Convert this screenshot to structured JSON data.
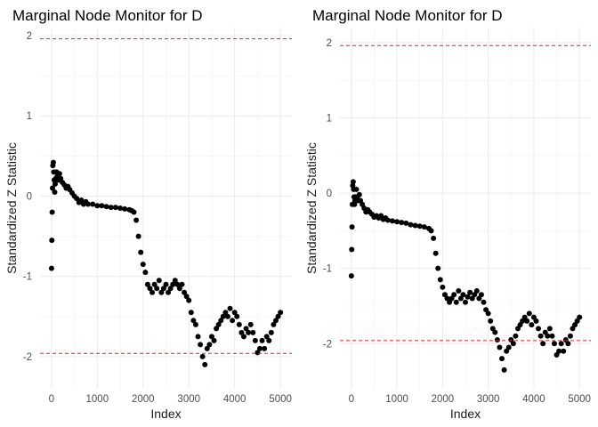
{
  "chart_data": [
    {
      "type": "scatter",
      "title": "Marginal Node Monitor for D",
      "xlabel": "Index",
      "ylabel": "Standardized Z Statistic",
      "xlim": [
        -250,
        5250
      ],
      "ylim": [
        -2.4,
        2.1
      ],
      "x_ticks": [
        0,
        1000,
        2000,
        3000,
        4000,
        5000
      ],
      "x_tick_labels": [
        "0",
        "1000",
        "2000",
        "3000",
        "4000",
        "5000"
      ],
      "y_ticks": [
        -2,
        -1,
        0,
        1,
        2
      ],
      "y_tick_labels": [
        "-2",
        "-1",
        "0",
        "1",
        "2"
      ],
      "grid": true,
      "reference_lines": [
        1.96,
        -1.96
      ],
      "reference_line_color": "#d62728",
      "point_color": "#000000",
      "series": [
        {
          "x": [
            1,
            8,
            15,
            22,
            30,
            40,
            50,
            60,
            70,
            80,
            95,
            110,
            130,
            150,
            175,
            200,
            240,
            280,
            320,
            360,
            400,
            450,
            500,
            550,
            600,
            650,
            700,
            750,
            800,
            900,
            1000,
            1100,
            1200,
            1300,
            1400,
            1500,
            1600,
            1700,
            1750,
            1800,
            1850,
            1900,
            1950,
            2000,
            2050,
            2100,
            2150,
            2200,
            2250,
            2300,
            2350,
            2400,
            2450,
            2500,
            2550,
            2600,
            2650,
            2700,
            2750,
            2800,
            2850,
            2900,
            2950,
            3000,
            3050,
            3100,
            3150,
            3200,
            3250,
            3300,
            3350,
            3400,
            3450,
            3500,
            3550,
            3600,
            3650,
            3700,
            3750,
            3800,
            3850,
            3900,
            3950,
            4000,
            4050,
            4100,
            4150,
            4200,
            4250,
            4300,
            4350,
            4400,
            4450,
            4500,
            4550,
            4600,
            4650,
            4700,
            4750,
            4800,
            4850,
            4900,
            4950,
            5000
          ],
          "y": [
            -0.9,
            -0.55,
            -0.2,
            0.1,
            0.38,
            0.42,
            0.3,
            0.2,
            0.05,
            0.15,
            0.22,
            0.3,
            0.25,
            0.2,
            0.28,
            0.22,
            0.17,
            0.14,
            0.1,
            0.12,
            0.08,
            0.04,
            0.0,
            -0.03,
            -0.08,
            -0.05,
            -0.1,
            -0.07,
            -0.1,
            -0.1,
            -0.12,
            -0.12,
            -0.13,
            -0.14,
            -0.14,
            -0.15,
            -0.16,
            -0.17,
            -0.18,
            -0.2,
            -0.3,
            -0.5,
            -0.7,
            -0.85,
            -0.95,
            -1.1,
            -1.15,
            -1.2,
            -1.1,
            -1.15,
            -1.05,
            -1.2,
            -1.15,
            -1.1,
            -1.2,
            -1.15,
            -1.1,
            -1.05,
            -1.1,
            -1.15,
            -1.1,
            -1.2,
            -1.25,
            -1.3,
            -1.45,
            -1.55,
            -1.6,
            -1.75,
            -1.85,
            -2.0,
            -2.1,
            -1.9,
            -1.85,
            -1.75,
            -1.8,
            -1.65,
            -1.6,
            -1.55,
            -1.5,
            -1.45,
            -1.5,
            -1.4,
            -1.55,
            -1.45,
            -1.5,
            -1.6,
            -1.7,
            -1.75,
            -1.65,
            -1.7,
            -1.6,
            -1.7,
            -1.8,
            -1.95,
            -1.9,
            -1.8,
            -1.9,
            -1.75,
            -1.8,
            -1.7,
            -1.6,
            -1.55,
            -1.5,
            -1.45
          ]
        }
      ]
    },
    {
      "type": "scatter",
      "title": "Marginal Node Monitor for D",
      "xlabel": "Index",
      "ylabel": "Standardized Z Statistic",
      "xlim": [
        -250,
        5250
      ],
      "ylim": [
        -2.6,
        2.2
      ],
      "x_ticks": [
        0,
        1000,
        2000,
        3000,
        4000,
        5000
      ],
      "x_tick_labels": [
        "0",
        "1000",
        "2000",
        "3000",
        "4000",
        "5000"
      ],
      "y_ticks": [
        -2,
        -1,
        0,
        1,
        2
      ],
      "y_tick_labels": [
        "-2",
        "-1",
        "0",
        "1",
        "2"
      ],
      "grid": true,
      "reference_lines": [
        1.96,
        -1.96
      ],
      "reference_line_color": "#d62728",
      "point_color": "#000000",
      "series": [
        {
          "x": [
            1,
            8,
            15,
            22,
            30,
            40,
            50,
            60,
            70,
            80,
            95,
            110,
            130,
            150,
            175,
            200,
            240,
            280,
            320,
            360,
            400,
            450,
            500,
            550,
            600,
            650,
            700,
            750,
            800,
            900,
            1000,
            1100,
            1200,
            1300,
            1400,
            1500,
            1600,
            1700,
            1750,
            1800,
            1850,
            1900,
            1950,
            2000,
            2050,
            2100,
            2150,
            2200,
            2250,
            2300,
            2350,
            2400,
            2450,
            2500,
            2550,
            2600,
            2650,
            2700,
            2750,
            2800,
            2850,
            2900,
            2950,
            3000,
            3050,
            3100,
            3150,
            3200,
            3250,
            3300,
            3350,
            3400,
            3450,
            3500,
            3550,
            3600,
            3650,
            3700,
            3750,
            3800,
            3850,
            3900,
            3950,
            4000,
            4050,
            4100,
            4150,
            4200,
            4250,
            4300,
            4350,
            4400,
            4450,
            4500,
            4550,
            4600,
            4650,
            4700,
            4750,
            4800,
            4850,
            4900,
            4950,
            5000
          ],
          "y": [
            -1.1,
            -0.75,
            -0.45,
            -0.15,
            0.1,
            0.15,
            0.05,
            -0.05,
            -0.15,
            -0.1,
            -0.05,
            0.05,
            -0.05,
            -0.1,
            -0.02,
            -0.1,
            -0.15,
            -0.2,
            -0.25,
            -0.22,
            -0.25,
            -0.28,
            -0.32,
            -0.3,
            -0.33,
            -0.3,
            -0.35,
            -0.33,
            -0.36,
            -0.37,
            -0.38,
            -0.39,
            -0.4,
            -0.42,
            -0.43,
            -0.44,
            -0.45,
            -0.47,
            -0.5,
            -0.6,
            -0.8,
            -1.0,
            -1.15,
            -1.25,
            -1.35,
            -1.4,
            -1.45,
            -1.4,
            -1.35,
            -1.45,
            -1.3,
            -1.4,
            -1.35,
            -1.45,
            -1.38,
            -1.32,
            -1.4,
            -1.35,
            -1.3,
            -1.4,
            -1.35,
            -1.45,
            -1.55,
            -1.6,
            -1.7,
            -1.8,
            -1.85,
            -1.95,
            -2.05,
            -2.2,
            -2.35,
            -2.1,
            -2.05,
            -1.95,
            -2.0,
            -1.9,
            -1.8,
            -1.75,
            -1.7,
            -1.65,
            -1.7,
            -1.6,
            -1.75,
            -1.65,
            -1.7,
            -1.8,
            -1.9,
            -2.0,
            -1.85,
            -1.9,
            -1.8,
            -1.9,
            -2.0,
            -2.15,
            -2.1,
            -2.0,
            -2.1,
            -1.95,
            -2.0,
            -1.9,
            -1.8,
            -1.75,
            -1.7,
            -1.65
          ]
        }
      ]
    }
  ]
}
